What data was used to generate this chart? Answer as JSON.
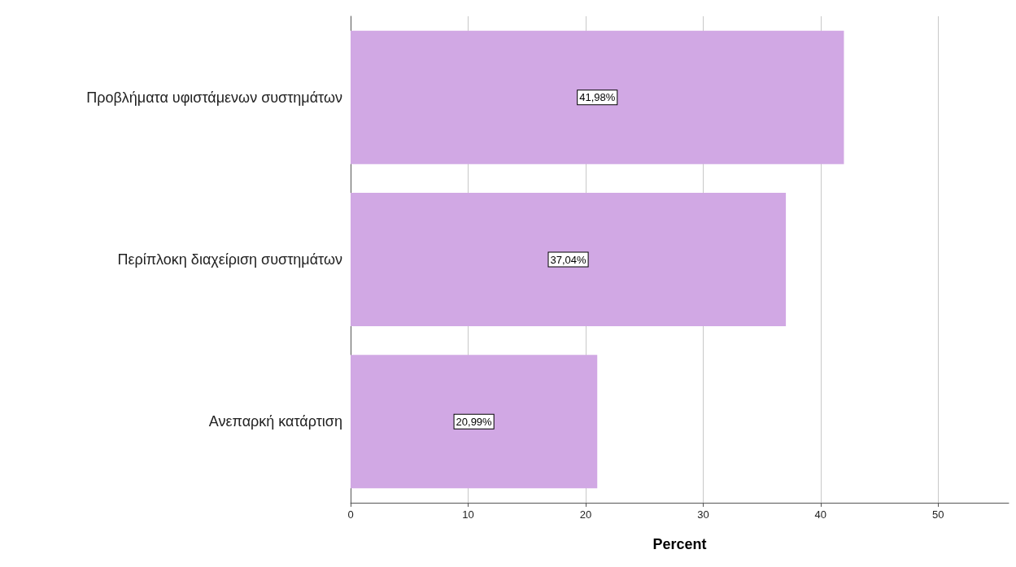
{
  "chart_data": {
    "type": "bar",
    "orientation": "horizontal",
    "xlabel": "Percent",
    "categories": [
      "Προβλήματα υφιστάμενων συστημάτων",
      "Περίπλοκη διαχείριση συστημάτων",
      "Ανεπαρκή κατάρτιση"
    ],
    "values": [
      41.98,
      37.04,
      20.99
    ],
    "color": "#d1a8e4",
    "value_labels": [
      "41,98%",
      "37,04%",
      "20,99%"
    ],
    "xlim": [
      0,
      56
    ],
    "xticks": [
      0,
      10,
      20,
      30,
      40,
      50
    ],
    "grid": "x"
  }
}
